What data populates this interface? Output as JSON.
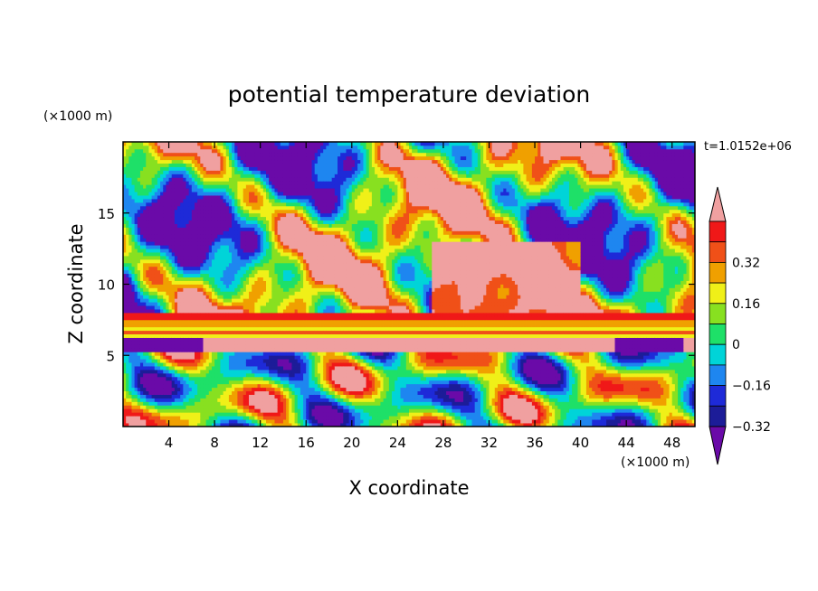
{
  "chart_data": {
    "type": "heatmap",
    "title": "potential temperature deviation",
    "xlabel": "X coordinate",
    "ylabel": "Z coordinate",
    "x_unit": "(×1000 m)",
    "y_unit": "(×1000 m)",
    "time_label": "t=1.0152e+06",
    "xlim": [
      0,
      50
    ],
    "ylim": [
      0,
      20
    ],
    "x_ticks": [
      "4",
      "8",
      "12",
      "16",
      "20",
      "24",
      "28",
      "32",
      "36",
      "40",
      "44",
      "48"
    ],
    "y_ticks": [
      "5",
      "10",
      "15"
    ],
    "colorbar": {
      "labels": [
        "0.32",
        "0.16",
        "0",
        "−0.16",
        "−0.32"
      ],
      "levels": [
        -0.4,
        -0.32,
        -0.24,
        -0.16,
        -0.08,
        0,
        0.08,
        0.16,
        0.24,
        0.32,
        0.4
      ],
      "colors": [
        "#6a0aa8",
        "#1c1c98",
        "#1e2ad8",
        "#1e86f0",
        "#00d4d8",
        "#1ee068",
        "#88e020",
        "#f0f018",
        "#f0a000",
        "#f05018",
        "#f01818",
        "#f0a0a0"
      ],
      "extend": "both"
    }
  }
}
